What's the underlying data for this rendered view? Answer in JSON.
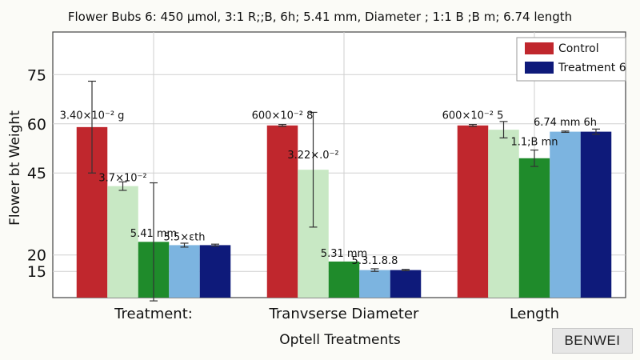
{
  "chart_data": {
    "type": "bar",
    "title": "Flower Bubs 6: 450 µmol, 3:1 R;;B, 6h; 5.41 mm, Diameter ; 1:1 B ;B m; 6.74 length",
    "xlabel": "Optell Treatments",
    "ylabel": "Flower bt Weight",
    "categories": [
      "Treatment:",
      "Tranvserse Diameter",
      "Length"
    ],
    "y_ticks": [
      15,
      20,
      45,
      60,
      75
    ],
    "ylim": [
      7,
      88
    ],
    "grid": true,
    "legend_position": "top-right",
    "series": [
      {
        "name": "Control",
        "color": "#c0272d",
        "values": [
          59,
          59.5,
          59.5
        ],
        "errors": [
          14,
          0.3,
          0.3
        ]
      },
      {
        "name": "",
        "color": "#c8e8c4",
        "values": [
          41,
          46,
          58.2
        ],
        "errors": [
          1.3,
          17.5,
          2.5
        ]
      },
      {
        "name": "",
        "color": "#1f8b2b",
        "values": [
          24,
          18,
          49.5
        ],
        "errors": [
          18,
          0,
          2.5
        ]
      },
      {
        "name": "",
        "color": "#7cb4e0",
        "values": [
          23,
          15.4,
          57.6
        ],
        "errors": [
          0.6,
          0.4,
          0.2
        ]
      },
      {
        "name": "Treatment 6",
        "color": "#0e1a7a",
        "values": [
          23,
          15.4,
          57.6
        ],
        "errors": [
          0.3,
          0.2,
          0.8
        ]
      }
    ],
    "annotations": [
      {
        "text": "3.40×10⁻² g",
        "category": 0,
        "series": 0,
        "y": 61.5
      },
      {
        "text": "3.7×10⁻²",
        "category": 0,
        "series": 1,
        "y": 42.5
      },
      {
        "text": "5.41 mm",
        "category": 0,
        "series": 2,
        "y": 25.5
      },
      {
        "text": "5.5×εth",
        "category": 0,
        "series": 3,
        "y": 24.5
      },
      {
        "text": "600×10⁻² 8",
        "category": 1,
        "series": 0,
        "y": 61.5
      },
      {
        "text": "3.22×.0⁻²",
        "category": 1,
        "series": 1,
        "y": 49.5
      },
      {
        "text": "5.31 mm",
        "category": 1,
        "series": 2,
        "y": 19.5
      },
      {
        "text": "5.3.1.8.8",
        "category": 1,
        "series": 3,
        "y": 17.3
      },
      {
        "text": "600×10⁻² 5",
        "category": 2,
        "series": 0,
        "y": 61.5
      },
      {
        "text": "1.1;B mn",
        "category": 2,
        "series": 2,
        "y": 53.5
      },
      {
        "text": "6.74 mm 6h",
        "category": 2,
        "series": 3,
        "y": 59.5
      }
    ]
  },
  "watermark": "BENWEI"
}
